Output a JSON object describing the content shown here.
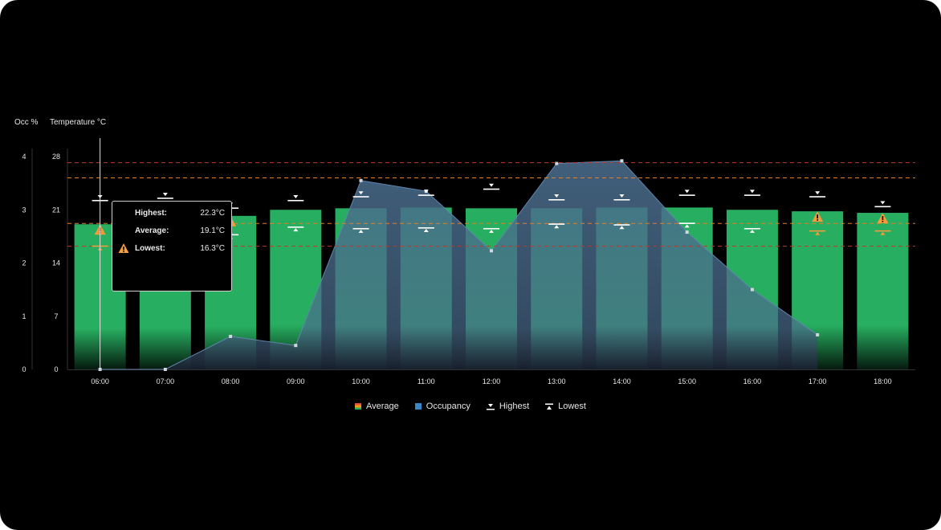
{
  "colors": {
    "background": "#000000",
    "average_bar": "#27ae60",
    "occupancy": "#4a6c8c",
    "occupancy_line": "#5f86ad",
    "threshold_red": "#c0392b",
    "threshold_orange": "#e67e22",
    "warning": "#f39c3c",
    "marker": "#ffffff"
  },
  "axes": {
    "occ_title": "Occ %",
    "temp_title": "Temperature °C"
  },
  "tooltip": {
    "highest_label": "Highest:",
    "highest_value": "22.3°C",
    "average_label": "Average:",
    "average_value": "19.1°C",
    "lowest_label": "Lowest:",
    "lowest_value": "16.3°C",
    "warning_on": "lowest",
    "icon": "warning-icon"
  },
  "legend": {
    "average": "Average",
    "occupancy": "Occupancy",
    "highest": "Highest",
    "lowest": "Lowest"
  },
  "chart_data": {
    "type": "bar",
    "categories": [
      "06:00",
      "07:00",
      "08:00",
      "09:00",
      "10:00",
      "11:00",
      "12:00",
      "13:00",
      "14:00",
      "15:00",
      "16:00",
      "17:00",
      "18:00"
    ],
    "series": [
      {
        "name": "Average",
        "axis": "temperature",
        "values": [
          19.1,
          19.4,
          20.2,
          21,
          21.2,
          21.3,
          21.2,
          21.2,
          21.3,
          21.3,
          21,
          20.8,
          20.6
        ]
      },
      {
        "name": "Occupancy",
        "axis": "occ",
        "type": "area",
        "values": [
          0,
          0,
          0.62,
          0.45,
          3.55,
          3.35,
          2.23,
          3.87,
          3.92,
          2.58,
          1.5,
          0.65,
          null
        ]
      },
      {
        "name": "Highest",
        "axis": "temperature",
        "values": [
          22.3,
          22.6,
          21.3,
          22.3,
          22.8,
          23,
          23.8,
          22.4,
          22.4,
          23,
          23,
          22.8,
          21.5
        ]
      },
      {
        "name": "Lowest",
        "axis": "temperature",
        "values": [
          16.3,
          null,
          17.8,
          18.8,
          18.6,
          18.7,
          18.6,
          19.2,
          19.1,
          19.3,
          18.6,
          18.3,
          18.3
        ]
      }
    ],
    "warnings": [
      {
        "category": "06:00",
        "at": "average"
      },
      {
        "category": "08:00",
        "at": "average"
      },
      {
        "category": "17:00",
        "at": "average"
      },
      {
        "category": "18:00",
        "at": "average"
      }
    ],
    "thresholds": [
      {
        "value": 27.2,
        "color": "red"
      },
      {
        "value": 25.2,
        "color": "orange"
      },
      {
        "value": 19.2,
        "color": "orange"
      },
      {
        "value": 16.2,
        "color": "red"
      }
    ],
    "occ_ticks": [
      0,
      1,
      2,
      3,
      4
    ],
    "temp_ticks": [
      0,
      7,
      14,
      21,
      28
    ],
    "ylim_temp": [
      0,
      28
    ],
    "ylim_occ": [
      0,
      4
    ],
    "grid": false,
    "legend_position": "bottom",
    "hover_category": "06:00"
  }
}
